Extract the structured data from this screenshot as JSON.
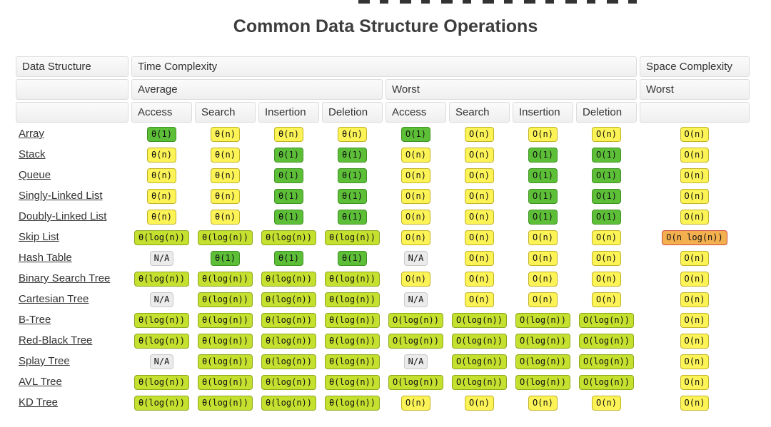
{
  "page": {
    "title": "Common Data Structure Operations"
  },
  "chart_data": {
    "type": "table",
    "title": "Common Data Structure Operations",
    "column_groups": [
      {
        "label": "Data Structure",
        "span": 1
      },
      {
        "label": "Time Complexity",
        "span": 8
      },
      {
        "label": "Space Complexity",
        "span": 1
      }
    ],
    "subgroups": [
      {
        "label": "Average",
        "span": 4
      },
      {
        "label": "Worst",
        "span": 4
      },
      {
        "label": "Worst",
        "span": 1
      }
    ],
    "operation_headers": [
      "Access",
      "Search",
      "Insertion",
      "Deletion",
      "Access",
      "Search",
      "Insertion",
      "Deletion"
    ],
    "rows": [
      {
        "name": "Array",
        "average": [
          "θ(1)",
          "θ(n)",
          "θ(n)",
          "θ(n)"
        ],
        "worst": [
          "O(1)",
          "O(n)",
          "O(n)",
          "O(n)"
        ],
        "space": "O(n)"
      },
      {
        "name": "Stack",
        "average": [
          "θ(n)",
          "θ(n)",
          "θ(1)",
          "θ(1)"
        ],
        "worst": [
          "O(n)",
          "O(n)",
          "O(1)",
          "O(1)"
        ],
        "space": "O(n)"
      },
      {
        "name": "Queue",
        "average": [
          "θ(n)",
          "θ(n)",
          "θ(1)",
          "θ(1)"
        ],
        "worst": [
          "O(n)",
          "O(n)",
          "O(1)",
          "O(1)"
        ],
        "space": "O(n)"
      },
      {
        "name": "Singly-Linked List",
        "average": [
          "θ(n)",
          "θ(n)",
          "θ(1)",
          "θ(1)"
        ],
        "worst": [
          "O(n)",
          "O(n)",
          "O(1)",
          "O(1)"
        ],
        "space": "O(n)"
      },
      {
        "name": "Doubly-Linked List",
        "average": [
          "θ(n)",
          "θ(n)",
          "θ(1)",
          "θ(1)"
        ],
        "worst": [
          "O(n)",
          "O(n)",
          "O(1)",
          "O(1)"
        ],
        "space": "O(n)"
      },
      {
        "name": "Skip List",
        "average": [
          "θ(log(n))",
          "θ(log(n))",
          "θ(log(n))",
          "θ(log(n))"
        ],
        "worst": [
          "O(n)",
          "O(n)",
          "O(n)",
          "O(n)"
        ],
        "space": "O(n log(n))"
      },
      {
        "name": "Hash Table",
        "average": [
          "N/A",
          "θ(1)",
          "θ(1)",
          "θ(1)"
        ],
        "worst": [
          "N/A",
          "O(n)",
          "O(n)",
          "O(n)"
        ],
        "space": "O(n)"
      },
      {
        "name": "Binary Search Tree",
        "average": [
          "θ(log(n))",
          "θ(log(n))",
          "θ(log(n))",
          "θ(log(n))"
        ],
        "worst": [
          "O(n)",
          "O(n)",
          "O(n)",
          "O(n)"
        ],
        "space": "O(n)"
      },
      {
        "name": "Cartesian Tree",
        "average": [
          "N/A",
          "θ(log(n))",
          "θ(log(n))",
          "θ(log(n))"
        ],
        "worst": [
          "N/A",
          "O(n)",
          "O(n)",
          "O(n)"
        ],
        "space": "O(n)"
      },
      {
        "name": "B-Tree",
        "average": [
          "θ(log(n))",
          "θ(log(n))",
          "θ(log(n))",
          "θ(log(n))"
        ],
        "worst": [
          "O(log(n))",
          "O(log(n))",
          "O(log(n))",
          "O(log(n))"
        ],
        "space": "O(n)"
      },
      {
        "name": "Red-Black Tree",
        "average": [
          "θ(log(n))",
          "θ(log(n))",
          "θ(log(n))",
          "θ(log(n))"
        ],
        "worst": [
          "O(log(n))",
          "O(log(n))",
          "O(log(n))",
          "O(log(n))"
        ],
        "space": "O(n)"
      },
      {
        "name": "Splay Tree",
        "average": [
          "N/A",
          "θ(log(n))",
          "θ(log(n))",
          "θ(log(n))"
        ],
        "worst": [
          "N/A",
          "O(log(n))",
          "O(log(n))",
          "O(log(n))"
        ],
        "space": "O(n)"
      },
      {
        "name": "AVL Tree",
        "average": [
          "θ(log(n))",
          "θ(log(n))",
          "θ(log(n))",
          "θ(log(n))"
        ],
        "worst": [
          "O(log(n))",
          "O(log(n))",
          "O(log(n))",
          "O(log(n))"
        ],
        "space": "O(n)"
      },
      {
        "name": "KD Tree",
        "average": [
          "θ(log(n))",
          "θ(log(n))",
          "θ(log(n))",
          "θ(log(n))"
        ],
        "worst": [
          "O(n)",
          "O(n)",
          "O(n)",
          "O(n)"
        ],
        "space": "O(n)"
      }
    ]
  },
  "legend_colors": {
    "green_bg": "#5dbf38",
    "green_border": "#3e9221",
    "yellow_bg": "#fcf357",
    "yellow_border": "#c2b226",
    "lightgreen_bg": "#c5e02f",
    "lightgreen_border": "#8aa81c",
    "orange_bg": "#f4b04e",
    "orange_border": "#cf4a41",
    "na_bg": "#ebebeb",
    "na_border": "#c9c9c9",
    "header_border": "#dcdcdc",
    "link_text": "#333333",
    "badge_text": "#111111",
    "title_text": "#3d3d3d"
  }
}
